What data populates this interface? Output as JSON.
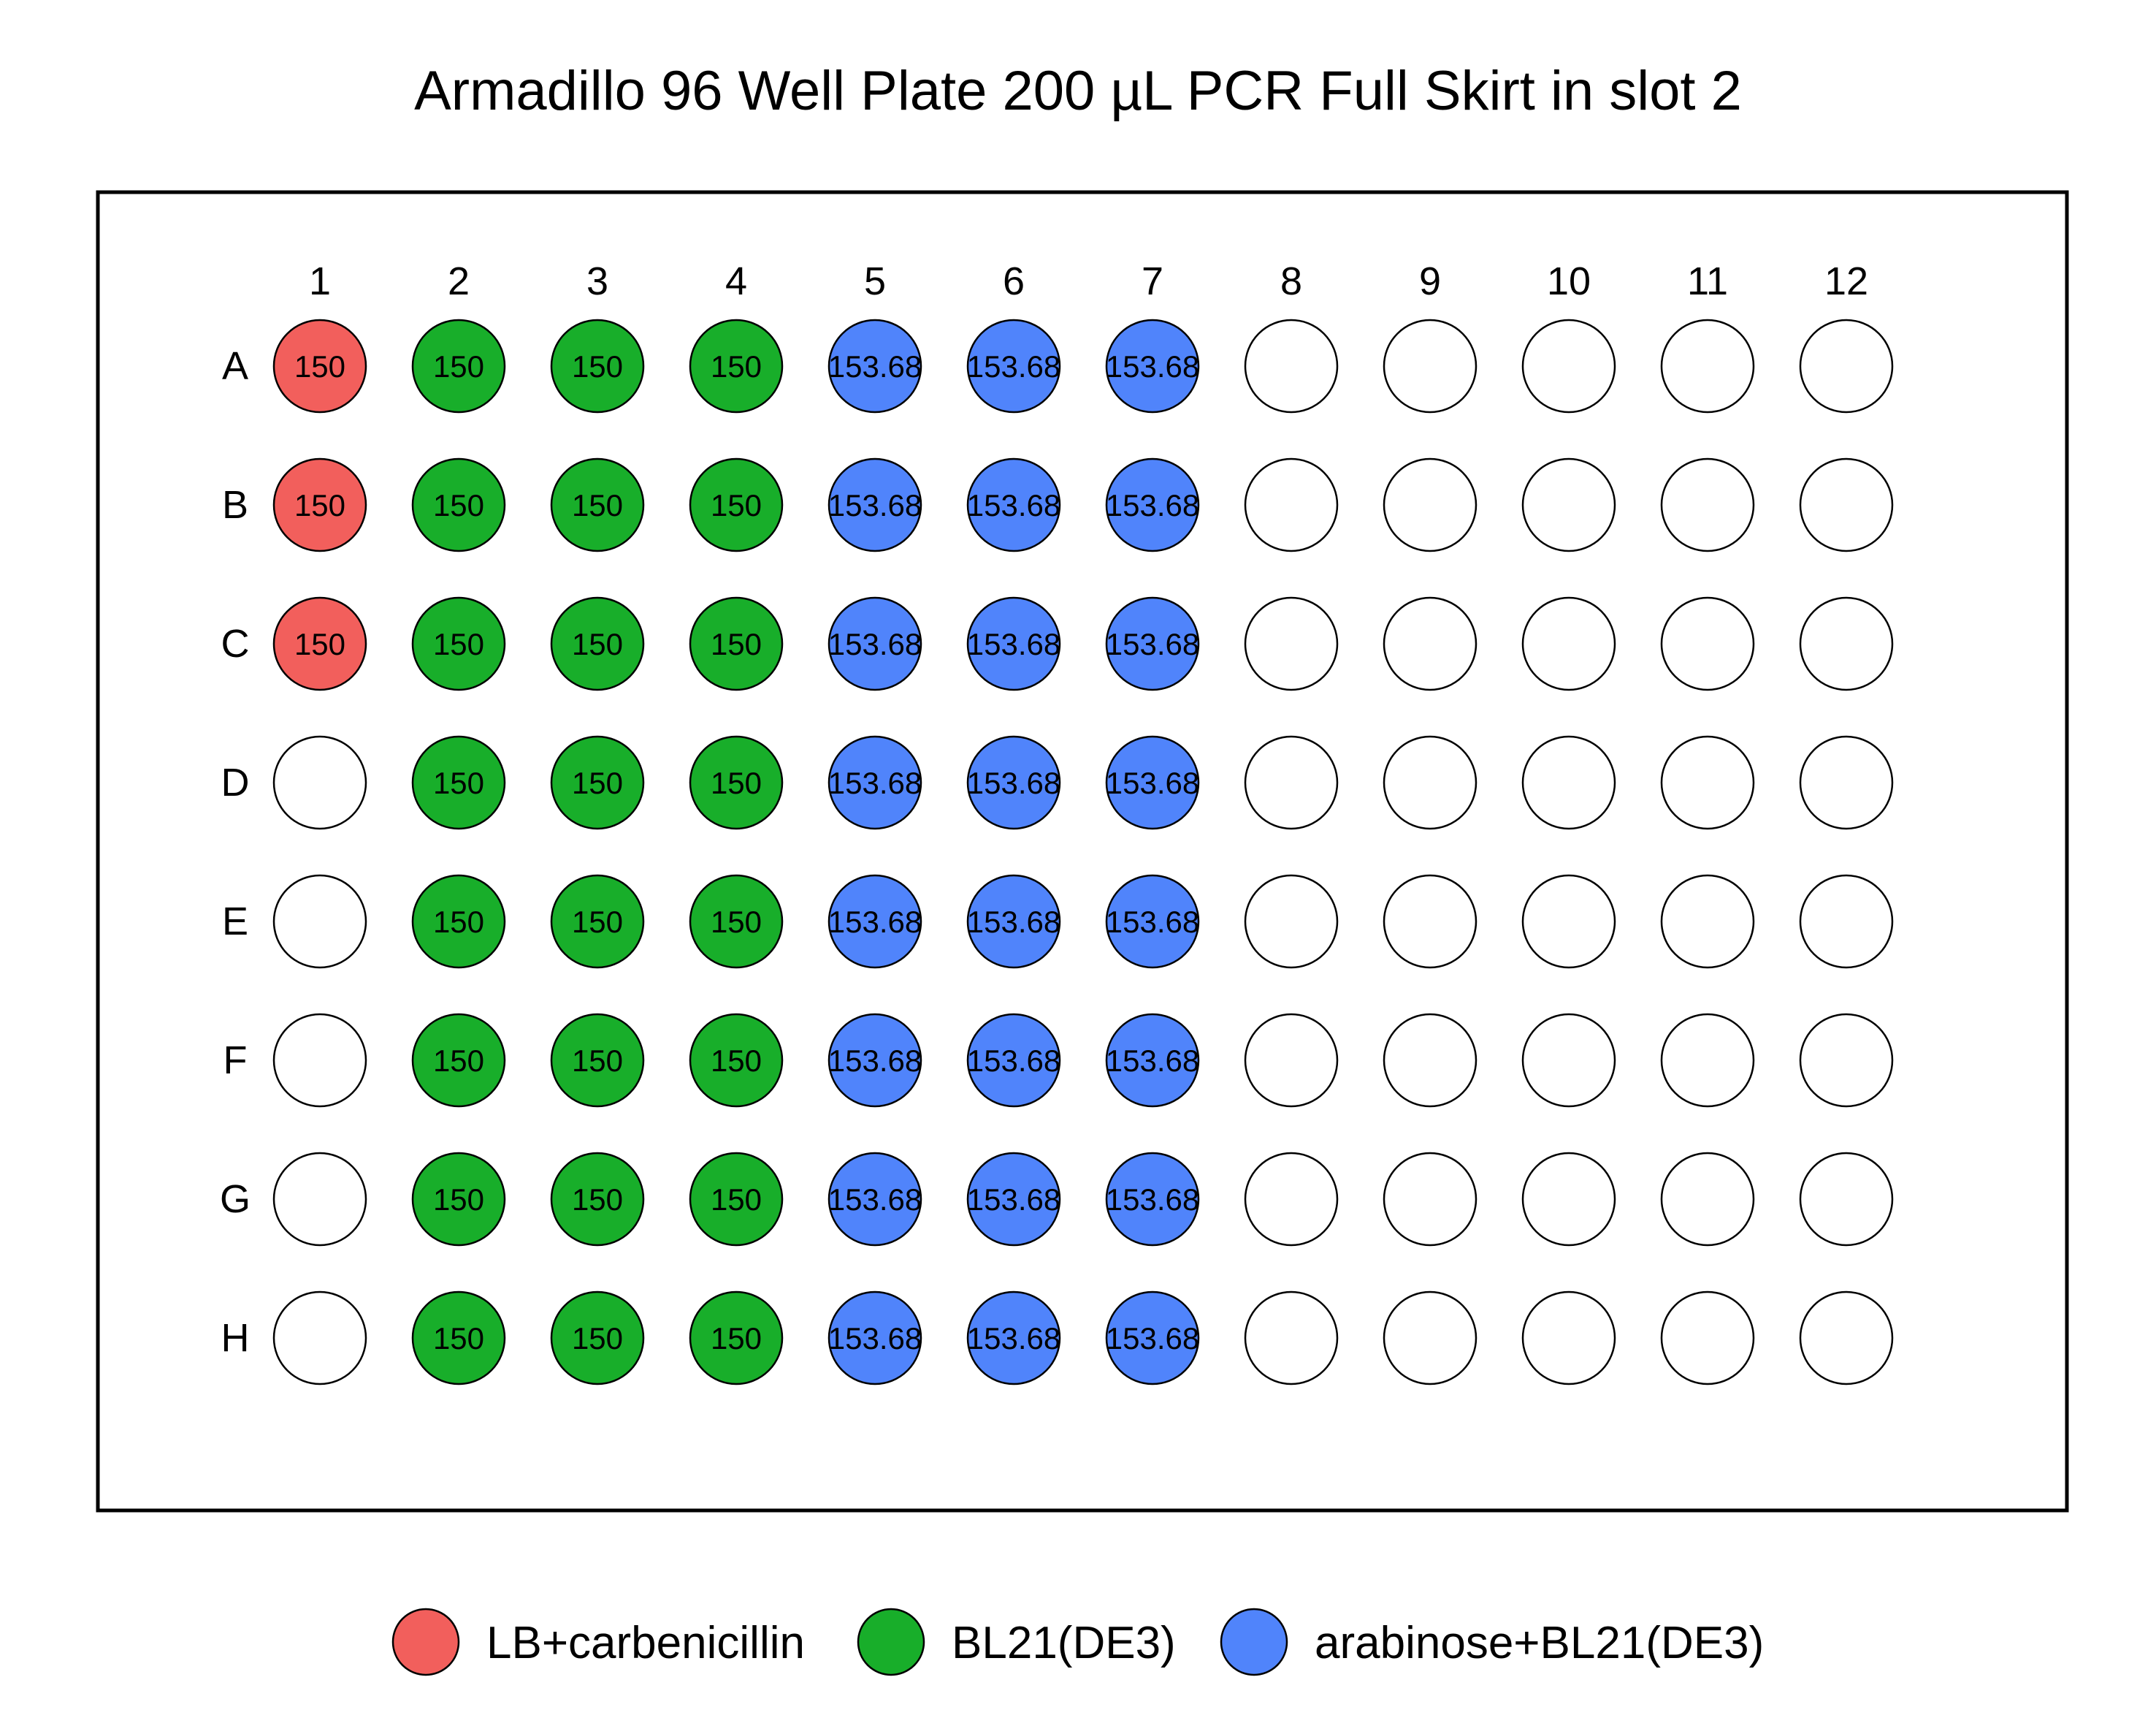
{
  "title": "Armadillo 96 Well Plate 200 µL PCR Full Skirt in slot 2",
  "plate": {
    "columns": [
      "1",
      "2",
      "3",
      "4",
      "5",
      "6",
      "7",
      "8",
      "9",
      "10",
      "11",
      "12"
    ],
    "rows": [
      "A",
      "B",
      "C",
      "D",
      "E",
      "F",
      "G",
      "H"
    ],
    "empty_color": "#ffffff",
    "outline_color": "#000000"
  },
  "legend": {
    "items": [
      {
        "label": "LB+carbenicillin",
        "color": "#f25f5c"
      },
      {
        "label": "BL21(DE3)",
        "color": "#18ae2a"
      },
      {
        "label": "arabinose+BL21(DE3)",
        "color": "#5084fb"
      }
    ]
  },
  "chart_data": {
    "type": "heatmap",
    "title": "Armadillo 96 Well Plate 200 µL PCR Full Skirt in slot 2",
    "columns": [
      "1",
      "2",
      "3",
      "4",
      "5",
      "6",
      "7",
      "8",
      "9",
      "10",
      "11",
      "12"
    ],
    "rows": [
      "A",
      "B",
      "C",
      "D",
      "E",
      "F",
      "G",
      "H"
    ],
    "wells": [
      {
        "well": "A1",
        "volume": "150",
        "liquid": "LB+carbenicillin"
      },
      {
        "well": "B1",
        "volume": "150",
        "liquid": "LB+carbenicillin"
      },
      {
        "well": "C1",
        "volume": "150",
        "liquid": "LB+carbenicillin"
      },
      {
        "well": "A2",
        "volume": "150",
        "liquid": "BL21(DE3)"
      },
      {
        "well": "B2",
        "volume": "150",
        "liquid": "BL21(DE3)"
      },
      {
        "well": "C2",
        "volume": "150",
        "liquid": "BL21(DE3)"
      },
      {
        "well": "D2",
        "volume": "150",
        "liquid": "BL21(DE3)"
      },
      {
        "well": "E2",
        "volume": "150",
        "liquid": "BL21(DE3)"
      },
      {
        "well": "F2",
        "volume": "150",
        "liquid": "BL21(DE3)"
      },
      {
        "well": "G2",
        "volume": "150",
        "liquid": "BL21(DE3)"
      },
      {
        "well": "H2",
        "volume": "150",
        "liquid": "BL21(DE3)"
      },
      {
        "well": "A3",
        "volume": "150",
        "liquid": "BL21(DE3)"
      },
      {
        "well": "B3",
        "volume": "150",
        "liquid": "BL21(DE3)"
      },
      {
        "well": "C3",
        "volume": "150",
        "liquid": "BL21(DE3)"
      },
      {
        "well": "D3",
        "volume": "150",
        "liquid": "BL21(DE3)"
      },
      {
        "well": "E3",
        "volume": "150",
        "liquid": "BL21(DE3)"
      },
      {
        "well": "F3",
        "volume": "150",
        "liquid": "BL21(DE3)"
      },
      {
        "well": "G3",
        "volume": "150",
        "liquid": "BL21(DE3)"
      },
      {
        "well": "H3",
        "volume": "150",
        "liquid": "BL21(DE3)"
      },
      {
        "well": "A4",
        "volume": "150",
        "liquid": "BL21(DE3)"
      },
      {
        "well": "B4",
        "volume": "150",
        "liquid": "BL21(DE3)"
      },
      {
        "well": "C4",
        "volume": "150",
        "liquid": "BL21(DE3)"
      },
      {
        "well": "D4",
        "volume": "150",
        "liquid": "BL21(DE3)"
      },
      {
        "well": "E4",
        "volume": "150",
        "liquid": "BL21(DE3)"
      },
      {
        "well": "F4",
        "volume": "150",
        "liquid": "BL21(DE3)"
      },
      {
        "well": "G4",
        "volume": "150",
        "liquid": "BL21(DE3)"
      },
      {
        "well": "H4",
        "volume": "150",
        "liquid": "BL21(DE3)"
      },
      {
        "well": "A5",
        "volume": "153.68",
        "liquid": "arabinose+BL21(DE3)"
      },
      {
        "well": "B5",
        "volume": "153.68",
        "liquid": "arabinose+BL21(DE3)"
      },
      {
        "well": "C5",
        "volume": "153.68",
        "liquid": "arabinose+BL21(DE3)"
      },
      {
        "well": "D5",
        "volume": "153.68",
        "liquid": "arabinose+BL21(DE3)"
      },
      {
        "well": "E5",
        "volume": "153.68",
        "liquid": "arabinose+BL21(DE3)"
      },
      {
        "well": "F5",
        "volume": "153.68",
        "liquid": "arabinose+BL21(DE3)"
      },
      {
        "well": "G5",
        "volume": "153.68",
        "liquid": "arabinose+BL21(DE3)"
      },
      {
        "well": "H5",
        "volume": "153.68",
        "liquid": "arabinose+BL21(DE3)"
      },
      {
        "well": "A6",
        "volume": "153.68",
        "liquid": "arabinose+BL21(DE3)"
      },
      {
        "well": "B6",
        "volume": "153.68",
        "liquid": "arabinose+BL21(DE3)"
      },
      {
        "well": "C6",
        "volume": "153.68",
        "liquid": "arabinose+BL21(DE3)"
      },
      {
        "well": "D6",
        "volume": "153.68",
        "liquid": "arabinose+BL21(DE3)"
      },
      {
        "well": "E6",
        "volume": "153.68",
        "liquid": "arabinose+BL21(DE3)"
      },
      {
        "well": "F6",
        "volume": "153.68",
        "liquid": "arabinose+BL21(DE3)"
      },
      {
        "well": "G6",
        "volume": "153.68",
        "liquid": "arabinose+BL21(DE3)"
      },
      {
        "well": "H6",
        "volume": "153.68",
        "liquid": "arabinose+BL21(DE3)"
      },
      {
        "well": "A7",
        "volume": "153.68",
        "liquid": "arabinose+BL21(DE3)"
      },
      {
        "well": "B7",
        "volume": "153.68",
        "liquid": "arabinose+BL21(DE3)"
      },
      {
        "well": "C7",
        "volume": "153.68",
        "liquid": "arabinose+BL21(DE3)"
      },
      {
        "well": "D7",
        "volume": "153.68",
        "liquid": "arabinose+BL21(DE3)"
      },
      {
        "well": "E7",
        "volume": "153.68",
        "liquid": "arabinose+BL21(DE3)"
      },
      {
        "well": "F7",
        "volume": "153.68",
        "liquid": "arabinose+BL21(DE3)"
      },
      {
        "well": "G7",
        "volume": "153.68",
        "liquid": "arabinose+BL21(DE3)"
      },
      {
        "well": "H7",
        "volume": "153.68",
        "liquid": "arabinose+BL21(DE3)"
      }
    ]
  }
}
